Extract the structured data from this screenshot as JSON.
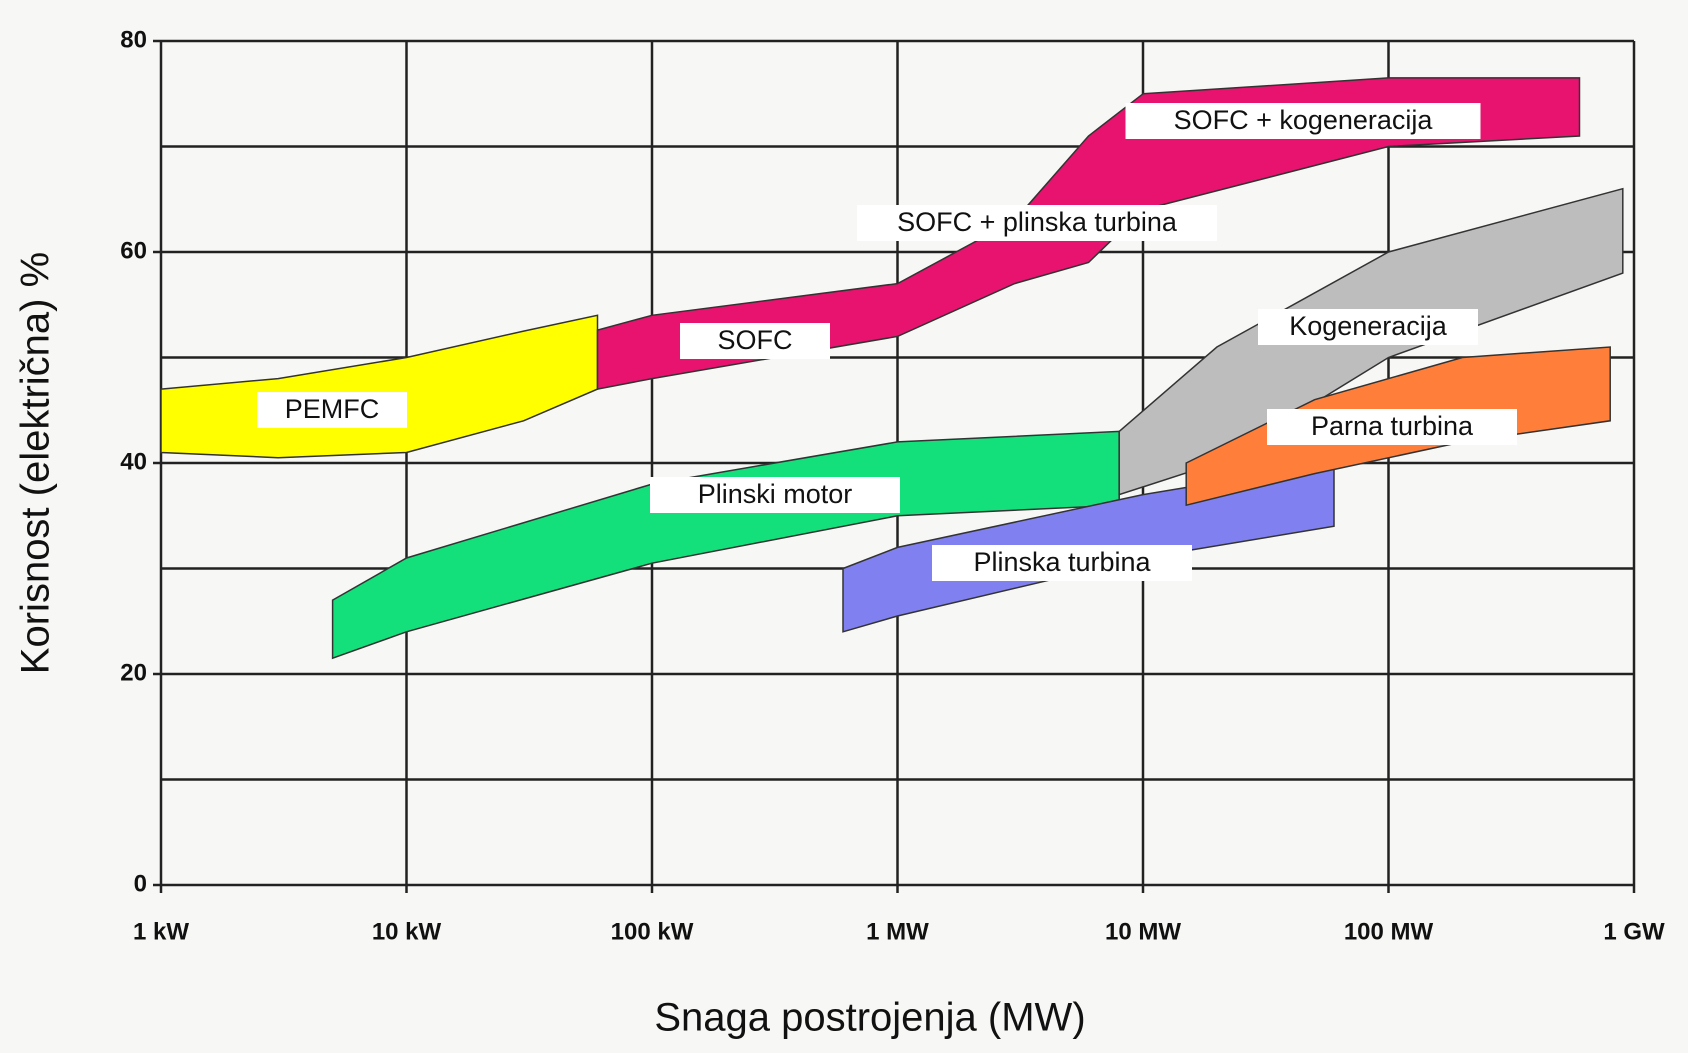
{
  "chart_data": {
    "type": "range_area",
    "x_label": "Snaga postrojenja (MW)",
    "y_label": "Korisnost (električna) %",
    "xscale": "log",
    "xlim": [
      0.001,
      1000
    ],
    "xticks": [
      {
        "value": 0.001,
        "label": "1 kW"
      },
      {
        "value": 0.01,
        "label": "10 kW"
      },
      {
        "value": 0.1,
        "label": "100 kW"
      },
      {
        "value": 1,
        "label": "1 MW"
      },
      {
        "value": 10,
        "label": "10 MW"
      },
      {
        "value": 100,
        "label": "100 MW"
      },
      {
        "value": 1000,
        "label": "1 GW"
      }
    ],
    "ylim": [
      0,
      80
    ],
    "yticks": [
      0,
      20,
      40,
      60,
      80
    ],
    "yminor": [
      10,
      30,
      50,
      70
    ],
    "grid": true,
    "series": [
      {
        "name": "PEMFC",
        "color": "#ffff00",
        "x": [
          0.001,
          0.003,
          0.01,
          0.03,
          0.06
        ],
        "upper": [
          47,
          48,
          50,
          52.5,
          54
        ],
        "lower": [
          41,
          40.5,
          41,
          44,
          47
        ]
      },
      {
        "name": "SOFC",
        "color": "#e8136f",
        "x": [
          0.06,
          0.1,
          1,
          3,
          6,
          10,
          100,
          600
        ],
        "upper": [
          52.6,
          54,
          57,
          63,
          71,
          75,
          76.5,
          76.5
        ],
        "lower": [
          47,
          48,
          52,
          57,
          59,
          64,
          70,
          71
        ]
      },
      {
        "name": "Plinski motor",
        "color": "#13e07a",
        "x": [
          0.005,
          0.01,
          0.1,
          1,
          8
        ],
        "upper": [
          27,
          31,
          38,
          42,
          43
        ],
        "lower": [
          21.5,
          24,
          30.5,
          35,
          36
        ]
      },
      {
        "name": "Plinska turbina",
        "color": "#8080f0",
        "x": [
          0.6,
          1,
          10,
          60
        ],
        "upper": [
          30,
          32,
          37,
          40
        ],
        "lower": [
          24,
          25.5,
          31,
          34
        ]
      },
      {
        "name": "Kogeneracija",
        "color": "#bdbdbd",
        "x": [
          8,
          20,
          100,
          900
        ],
        "upper": [
          43,
          51,
          60,
          66
        ],
        "lower": [
          37,
          40,
          50,
          58
        ]
      },
      {
        "name": "Parna turbina",
        "color": "#ff7f3a",
        "x": [
          15,
          50,
          200,
          800
        ],
        "upper": [
          40,
          46,
          50,
          51
        ],
        "lower": [
          36,
          39,
          42,
          44
        ]
      }
    ],
    "annotations": [
      "SOFC + plinska turbina",
      "SOFC + kogeneracija"
    ]
  }
}
